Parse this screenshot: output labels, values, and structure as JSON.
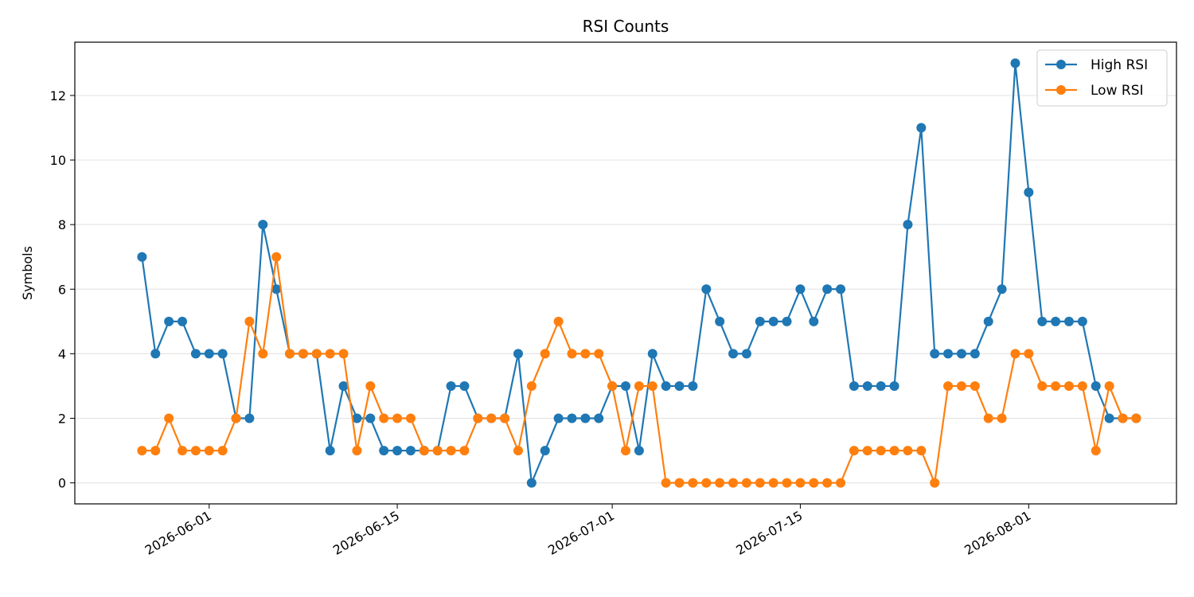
{
  "chart_data": {
    "type": "line",
    "title": "RSI Counts",
    "xlabel": "",
    "ylabel": "Symbols",
    "x_tick_labels": [
      "2026-06-01",
      "2026-06-15",
      "2026-07-01",
      "2026-07-15",
      "2026-08-01"
    ],
    "y_ticks": [
      0,
      2,
      4,
      6,
      8,
      10,
      12
    ],
    "ylim": [
      -0.65,
      13.65
    ],
    "xlim": [
      "2026-05-22",
      "2026-08-12"
    ],
    "grid": "horizontal",
    "legend_position": "top-right",
    "x": [
      "2026-05-27",
      "2026-05-28",
      "2026-05-29",
      "2026-05-30",
      "2026-05-31",
      "2026-06-01",
      "2026-06-02",
      "2026-06-03",
      "2026-06-04",
      "2026-06-05",
      "2026-06-06",
      "2026-06-07",
      "2026-06-08",
      "2026-06-09",
      "2026-06-10",
      "2026-06-11",
      "2026-06-12",
      "2026-06-13",
      "2026-06-14",
      "2026-06-15",
      "2026-06-16",
      "2026-06-17",
      "2026-06-18",
      "2026-06-19",
      "2026-06-20",
      "2026-06-21",
      "2026-06-22",
      "2026-06-23",
      "2026-06-24",
      "2026-06-25",
      "2026-06-26",
      "2026-06-27",
      "2026-06-28",
      "2026-06-29",
      "2026-06-30",
      "2026-07-01",
      "2026-07-02",
      "2026-07-03",
      "2026-07-04",
      "2026-07-05",
      "2026-07-06",
      "2026-07-07",
      "2026-07-08",
      "2026-07-09",
      "2026-07-10",
      "2026-07-11",
      "2026-07-12",
      "2026-07-13",
      "2026-07-14",
      "2026-07-15",
      "2026-07-16",
      "2026-07-17",
      "2026-07-18",
      "2026-07-19",
      "2026-07-20",
      "2026-07-21",
      "2026-07-22",
      "2026-07-23",
      "2026-07-24",
      "2026-07-25",
      "2026-07-26",
      "2026-07-27",
      "2026-07-28",
      "2026-07-29",
      "2026-07-30",
      "2026-07-31",
      "2026-08-01",
      "2026-08-02",
      "2026-08-03",
      "2026-08-04",
      "2026-08-05",
      "2026-08-06",
      "2026-08-07",
      "2026-08-08",
      "2026-08-09"
    ],
    "series": [
      {
        "name": "High RSI",
        "color": "#1f77b4",
        "values": [
          7,
          4,
          5,
          5,
          4,
          4,
          4,
          2,
          2,
          8,
          6,
          4,
          4,
          4,
          1,
          3,
          2,
          2,
          1,
          1,
          1,
          1,
          1,
          3,
          3,
          2,
          2,
          2,
          4,
          0,
          1,
          2,
          2,
          2,
          2,
          3,
          3,
          1,
          4,
          3,
          3,
          3,
          6,
          5,
          4,
          4,
          5,
          5,
          5,
          6,
          5,
          6,
          6,
          3,
          3,
          3,
          3,
          8,
          11,
          4,
          4,
          4,
          4,
          5,
          6,
          13,
          9,
          5,
          5,
          5,
          5,
          3,
          2,
          2,
          2
        ]
      },
      {
        "name": "Low RSI",
        "color": "#ff7f0e",
        "values": [
          1,
          1,
          2,
          1,
          1,
          1,
          1,
          2,
          5,
          4,
          7,
          4,
          4,
          4,
          4,
          4,
          1,
          3,
          2,
          2,
          2,
          1,
          1,
          1,
          1,
          2,
          2,
          2,
          1,
          3,
          4,
          5,
          4,
          4,
          4,
          3,
          1,
          3,
          3,
          0,
          0,
          0,
          0,
          0,
          0,
          0,
          0,
          0,
          0,
          0,
          0,
          0,
          0,
          1,
          1,
          1,
          1,
          1,
          1,
          0,
          3,
          3,
          3,
          2,
          2,
          4,
          4,
          3,
          3,
          3,
          3,
          1,
          3,
          2,
          2
        ]
      }
    ]
  }
}
